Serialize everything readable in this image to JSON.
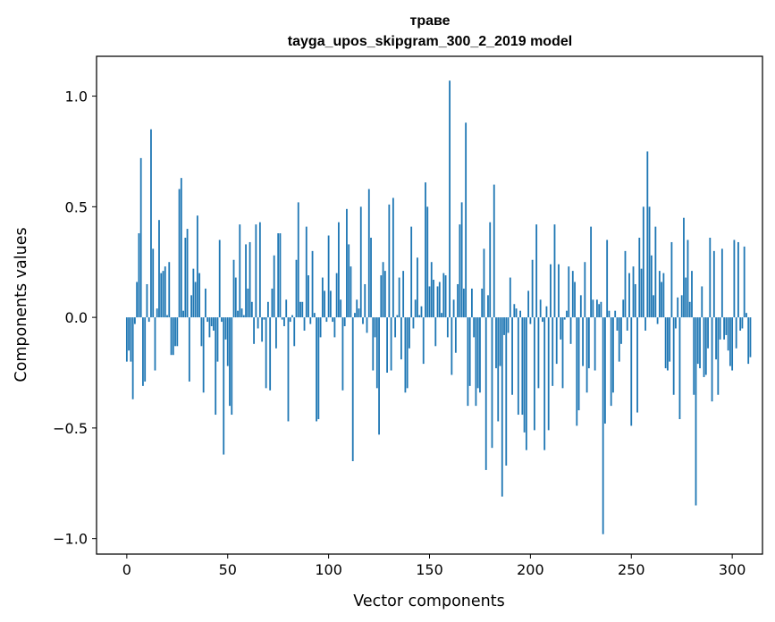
{
  "chart_data": {
    "type": "bar",
    "title": "траве",
    "subtitle": "tayga_upos_skipgram_300_2_2019 model",
    "xlabel": "Vector components",
    "ylabel": "Components values",
    "xlim": [
      -15,
      315
    ],
    "ylim": [
      -1.07,
      1.18
    ],
    "xticks": [
      0,
      50,
      100,
      150,
      200,
      250,
      300
    ],
    "yticks": [
      -1.0,
      -0.5,
      0.0,
      0.5,
      1.0
    ],
    "ytick_labels": [
      "−1.0",
      "−0.5",
      "0.0",
      "0.5",
      "1.0"
    ],
    "color": "#1f77b4",
    "grid": false,
    "series": [
      {
        "name": "траве",
        "x_start": 0,
        "values": [
          -0.2,
          -0.15,
          -0.2,
          -0.37,
          -0.03,
          0.16,
          0.38,
          0.72,
          -0.31,
          -0.29,
          0.15,
          -0.02,
          0.85,
          0.31,
          -0.24,
          0.04,
          0.44,
          0.2,
          0.21,
          0.23,
          0.01,
          0.25,
          -0.17,
          -0.17,
          -0.13,
          -0.13,
          0.58,
          0.63,
          0.03,
          0.36,
          0.4,
          -0.29,
          0.1,
          0.22,
          0.16,
          0.46,
          0.2,
          -0.13,
          -0.34,
          0.13,
          -0.02,
          -0.09,
          -0.04,
          -0.06,
          -0.44,
          -0.2,
          0.35,
          -0.02,
          -0.62,
          -0.1,
          -0.22,
          -0.4,
          -0.44,
          0.26,
          0.18,
          0.03,
          0.42,
          0.04,
          0.01,
          0.33,
          0.13,
          0.34,
          0.07,
          -0.12,
          0.42,
          -0.05,
          0.43,
          -0.11,
          -0.01,
          -0.32,
          0.07,
          -0.33,
          0.13,
          0.28,
          -0.14,
          0.38,
          0.38,
          -0.01,
          -0.04,
          0.08,
          -0.47,
          -0.02,
          0.01,
          -0.13,
          0.26,
          0.52,
          0.07,
          0.07,
          -0.06,
          0.41,
          0.19,
          -0.03,
          0.3,
          0.02,
          -0.47,
          -0.46,
          -0.09,
          0.18,
          0.12,
          -0.02,
          0.37,
          0.12,
          -0.02,
          -0.09,
          0.2,
          0.43,
          0.08,
          -0.33,
          -0.04,
          0.49,
          0.33,
          0.23,
          -0.65,
          0.02,
          0.08,
          0.04,
          0.5,
          -0.03,
          0.15,
          -0.07,
          0.58,
          0.36,
          -0.24,
          -0.09,
          -0.32,
          -0.53,
          0.19,
          0.25,
          0.21,
          -0.25,
          0.51,
          -0.24,
          0.54,
          -0.09,
          0.01,
          0.18,
          -0.19,
          0.21,
          -0.34,
          -0.32,
          -0.14,
          0.41,
          -0.05,
          0.08,
          0.27,
          0.01,
          0.05,
          -0.21,
          0.61,
          0.5,
          0.14,
          0.25,
          0.17,
          -0.13,
          0.14,
          0.16,
          0.02,
          0.2,
          0.19,
          -0.09,
          1.07,
          -0.26,
          0.08,
          -0.16,
          0.15,
          0.42,
          0.52,
          0.13,
          0.88,
          -0.4,
          -0.31,
          0.13,
          -0.09,
          -0.4,
          -0.32,
          -0.34,
          0.13,
          0.31,
          -0.69,
          0.1,
          0.43,
          -0.59,
          0.6,
          -0.23,
          -0.47,
          -0.22,
          -0.81,
          -0.08,
          -0.67,
          -0.07,
          0.18,
          -0.35,
          0.06,
          0.04,
          -0.44,
          0.03,
          -0.44,
          -0.52,
          -0.6,
          0.12,
          -0.03,
          0.26,
          -0.51,
          0.42,
          -0.32,
          0.08,
          -0.02,
          -0.6,
          0.05,
          -0.51,
          0.24,
          -0.31,
          0.42,
          -0.21,
          0.24,
          -0.1,
          -0.32,
          -0.01,
          0.03,
          0.23,
          -0.12,
          0.21,
          0.16,
          -0.49,
          -0.42,
          0.1,
          -0.22,
          0.25,
          -0.34,
          -0.23,
          0.41,
          0.08,
          -0.24,
          0.08,
          0.06,
          0.07,
          -0.98,
          -0.48,
          0.35,
          0.03,
          -0.4,
          -0.34,
          0.03,
          -0.06,
          -0.2,
          -0.12,
          0.08,
          0.3,
          -0.06,
          0.2,
          -0.49,
          0.23,
          0.15,
          -0.43,
          0.36,
          0.22,
          0.5,
          -0.06,
          0.75,
          0.5,
          0.28,
          0.1,
          0.41,
          -0.03,
          0.21,
          0.16,
          0.2,
          -0.23,
          -0.24,
          -0.2,
          0.34,
          -0.35,
          -0.05,
          0.09,
          -0.46,
          0.1,
          0.45,
          0.18,
          0.35,
          0.07,
          0.21,
          -0.35,
          -0.85,
          -0.21,
          -0.23,
          0.14,
          -0.27,
          -0.26,
          -0.14,
          0.36,
          -0.38,
          0.3,
          -0.19,
          -0.35,
          -0.1,
          0.31,
          -0.1,
          -0.08,
          -0.15,
          -0.22,
          -0.24,
          0.35,
          -0.14,
          0.34,
          -0.06,
          -0.05,
          0.32,
          0.02,
          -0.21,
          -0.18
        ]
      }
    ]
  }
}
